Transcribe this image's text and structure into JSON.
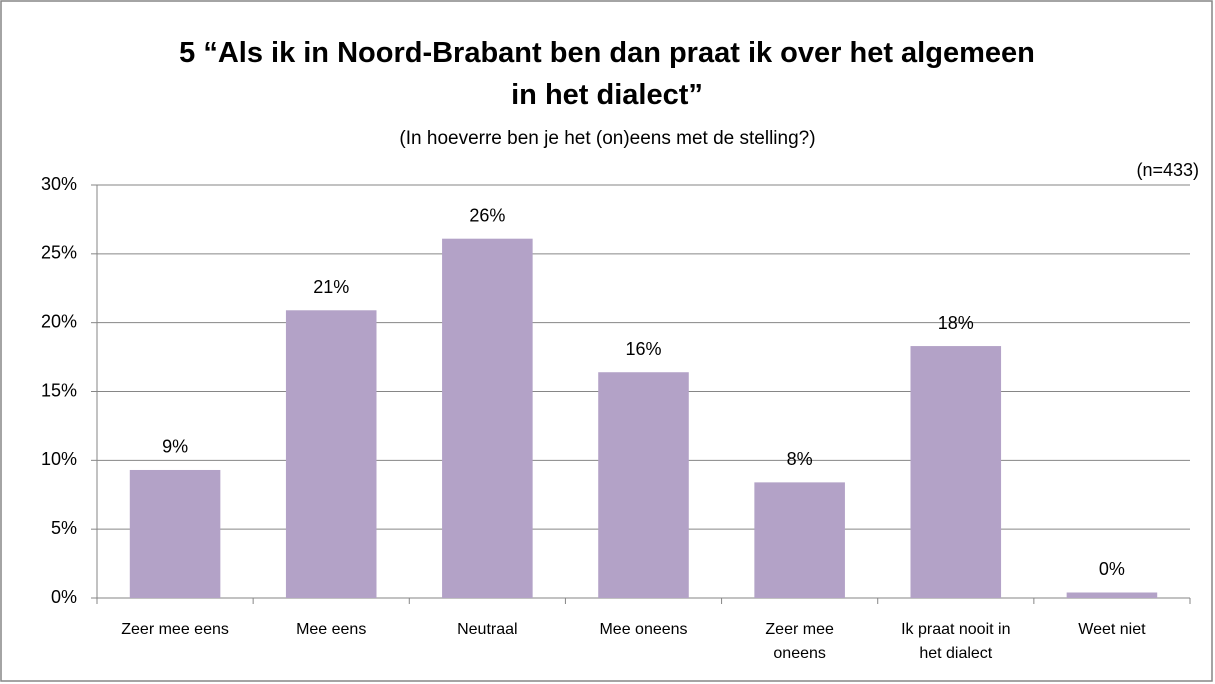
{
  "chart_data": {
    "type": "bar",
    "title": "5 “Als ik in Noord-Brabant ben dan praat ik over het algemeen in het dialect”",
    "subtitle": "(In hoeverre ben je het (on)eens met de stelling?)",
    "annotation": "(n=433)",
    "categories": [
      "Zeer mee eens",
      "Mee eens",
      "Neutraal",
      "Mee oneens",
      "Zeer mee oneens",
      "Ik praat nooit in het dialect",
      "Weet niet"
    ],
    "values": [
      9.3,
      20.9,
      26.1,
      16.4,
      8.4,
      18.3,
      0.4
    ],
    "value_labels": [
      "9%",
      "21%",
      "26%",
      "16%",
      "8%",
      "18%",
      "0%"
    ],
    "color": "#b3a2c7",
    "ylim": [
      0,
      30
    ],
    "yticks": [
      {
        "value": 0,
        "label": "0%"
      },
      {
        "value": 5,
        "label": "5%"
      },
      {
        "value": 10,
        "label": "10%"
      },
      {
        "value": 15,
        "label": "15%"
      },
      {
        "value": 20,
        "label": "20%"
      },
      {
        "value": 25,
        "label": "25%"
      },
      {
        "value": 30,
        "label": "30%"
      }
    ],
    "grid": true
  }
}
